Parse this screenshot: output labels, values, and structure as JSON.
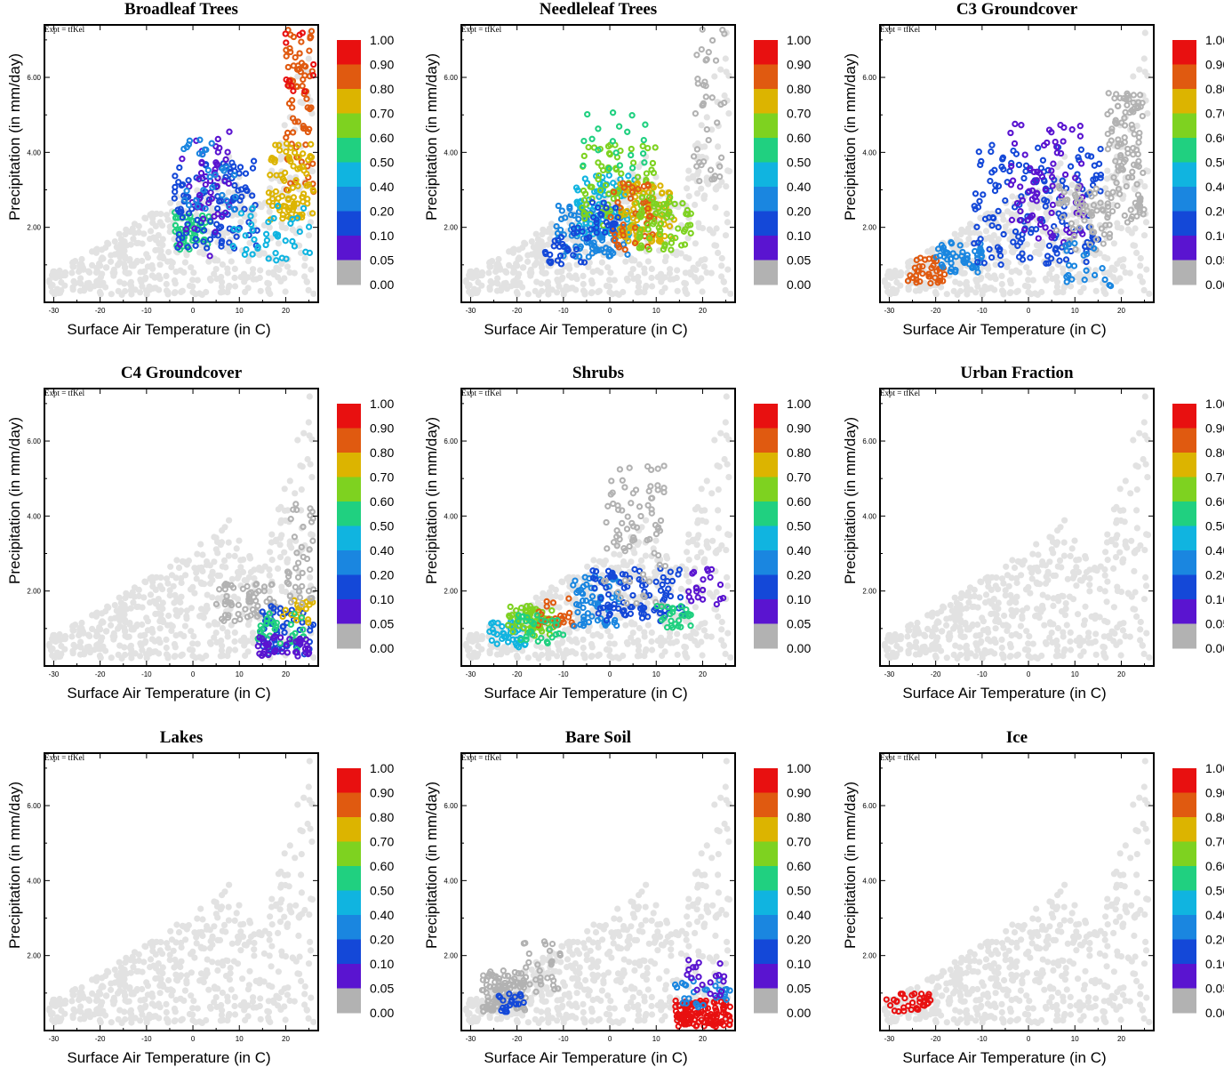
{
  "figure": {
    "expt_label": "Expt = tfKel",
    "xlabel": "Surface Air Temperature (in C)",
    "ylabel": "Precipitation (in mm/day)",
    "xlim": [
      -32,
      27
    ],
    "ylim": [
      0,
      7.4
    ],
    "x_ticks": [
      "-30",
      "-20",
      "-10",
      "0",
      "10",
      "20"
    ],
    "x_tick_values": [
      -30,
      -20,
      -10,
      0,
      10,
      20
    ],
    "y_ticks": [
      "2.00",
      "4.00",
      "6.00"
    ],
    "y_tick_values": [
      2,
      4,
      6
    ],
    "colorbar": {
      "labels": [
        "1.00",
        "0.90",
        "0.80",
        "0.70",
        "0.60",
        "0.50",
        "0.40",
        "0.20",
        "0.10",
        "0.05",
        "0.00"
      ],
      "colors": [
        "#e81010",
        "#e05a10",
        "#dcb400",
        "#7ed220",
        "#20d080",
        "#10b4e0",
        "#1a86e0",
        "#1448d8",
        "#5a14d0",
        "#b2b2b2"
      ]
    },
    "background_color": "#e2e2e2",
    "zero_color": "#b2b2b2"
  },
  "panels": [
    {
      "title": "Broadleaf Trees"
    },
    {
      "title": "Needleleaf Trees"
    },
    {
      "title": "C3 Groundcover"
    },
    {
      "title": "C4 Groundcover"
    },
    {
      "title": "Shrubs"
    },
    {
      "title": "Urban Fraction"
    },
    {
      "title": "Lakes"
    },
    {
      "title": "Bare Soil"
    },
    {
      "title": "Ice"
    }
  ],
  "chart_data": [
    {
      "type": "scatter",
      "title": "Broadleaf Trees",
      "xlabel": "Surface Air Temperature (in C)",
      "ylabel": "Precipitation (in mm/day)",
      "xlim": [
        -32,
        27
      ],
      "ylim": [
        0,
        7.4
      ],
      "clusters": [
        {
          "x": [
            20,
            26
          ],
          "y": [
            2.6,
            7.3
          ],
          "fraction": 0.9,
          "n": 70
        },
        {
          "x": [
            16,
            26
          ],
          "y": [
            2.2,
            4.3
          ],
          "fraction": 0.8,
          "n": 90
        },
        {
          "x": [
            -4,
            4
          ],
          "y": [
            1.4,
            2.4
          ],
          "fraction": 0.6,
          "n": 50
        },
        {
          "x": [
            -4,
            14
          ],
          "y": [
            1.4,
            3.8
          ],
          "fraction": 0.2,
          "n": 110
        },
        {
          "x": [
            -3,
            8
          ],
          "y": [
            1.2,
            4.6
          ],
          "fraction": 0.1,
          "n": 50
        },
        {
          "x": [
            8,
            26
          ],
          "y": [
            1.0,
            2.6
          ],
          "fraction": 0.5,
          "n": 40
        },
        {
          "x": [
            -2,
            10
          ],
          "y": [
            2.4,
            4.4
          ],
          "fraction": 0.4,
          "n": 30
        },
        {
          "x": [
            18,
            26
          ],
          "y": [
            5.4,
            7.3
          ],
          "fraction": 1.0,
          "n": 12
        }
      ]
    },
    {
      "type": "scatter",
      "title": "Needleleaf Trees",
      "xlabel": "Surface Air Temperature (in C)",
      "ylabel": "Precipitation (in mm/day)",
      "xlim": [
        -32,
        27
      ],
      "ylim": [
        0,
        7.4
      ],
      "clusters": [
        {
          "x": [
            -12,
            4
          ],
          "y": [
            1.2,
            2.6
          ],
          "fraction": 0.4,
          "n": 110
        },
        {
          "x": [
            -8,
            6
          ],
          "y": [
            1.8,
            3.4
          ],
          "fraction": 0.5,
          "n": 70
        },
        {
          "x": [
            -6,
            10
          ],
          "y": [
            2.0,
            4.2
          ],
          "fraction": 0.7,
          "n": 80
        },
        {
          "x": [
            2,
            14
          ],
          "y": [
            1.6,
            3.2
          ],
          "fraction": 0.8,
          "n": 80
        },
        {
          "x": [
            0,
            10
          ],
          "y": [
            1.4,
            3.2
          ],
          "fraction": 0.9,
          "n": 40
        },
        {
          "x": [
            -14,
            -4
          ],
          "y": [
            1.0,
            2.0
          ],
          "fraction": 0.2,
          "n": 30
        },
        {
          "x": [
            6,
            18
          ],
          "y": [
            1.4,
            2.8
          ],
          "fraction": 0.7,
          "n": 60
        },
        {
          "x": [
            18,
            25
          ],
          "y": [
            2.8,
            7.3
          ],
          "fraction": 0.05,
          "n": 40
        },
        {
          "x": [
            -6,
            8
          ],
          "y": [
            3.4,
            5.2
          ],
          "fraction": 0.6,
          "n": 20
        },
        {
          "x": [
            -4,
            2
          ],
          "y": [
            1.8,
            3.0
          ],
          "fraction": 0.2,
          "n": 20
        }
      ]
    },
    {
      "type": "scatter",
      "title": "C3 Groundcover",
      "xlabel": "Surface Air Temperature (in C)",
      "ylabel": "Precipitation (in mm/day)",
      "xlim": [
        -32,
        27
      ],
      "ylim": [
        0,
        7.4
      ],
      "clusters": [
        {
          "x": [
            -26,
            -18
          ],
          "y": [
            0.5,
            1.3
          ],
          "fraction": 0.9,
          "n": 40
        },
        {
          "x": [
            -20,
            -10
          ],
          "y": [
            0.8,
            1.6
          ],
          "fraction": 0.4,
          "n": 50
        },
        {
          "x": [
            -12,
            16
          ],
          "y": [
            1.0,
            4.2
          ],
          "fraction": 0.2,
          "n": 160
        },
        {
          "x": [
            -4,
            12
          ],
          "y": [
            1.6,
            4.8
          ],
          "fraction": 0.1,
          "n": 80
        },
        {
          "x": [
            6,
            18
          ],
          "y": [
            1.4,
            3.2
          ],
          "fraction": 0.05,
          "n": 60
        },
        {
          "x": [
            17,
            25
          ],
          "y": [
            2.0,
            5.6
          ],
          "fraction": 0.05,
          "n": 110
        },
        {
          "x": [
            8,
            18
          ],
          "y": [
            0.4,
            1.6
          ],
          "fraction": 0.4,
          "n": 20
        }
      ]
    },
    {
      "type": "scatter",
      "title": "C4 Groundcover",
      "xlabel": "Surface Air Temperature (in C)",
      "ylabel": "Precipitation (in mm/day)",
      "xlim": [
        -32,
        27
      ],
      "ylim": [
        0,
        7.4
      ],
      "clusters": [
        {
          "x": [
            5,
            18
          ],
          "y": [
            1.2,
            2.2
          ],
          "fraction": 0.05,
          "n": 60
        },
        {
          "x": [
            14,
            26
          ],
          "y": [
            0.3,
            1.6
          ],
          "fraction": 0.2,
          "n": 60
        },
        {
          "x": [
            18,
            26
          ],
          "y": [
            1.0,
            1.8
          ],
          "fraction": 0.8,
          "n": 20
        },
        {
          "x": [
            14,
            24
          ],
          "y": [
            0.4,
            1.4
          ],
          "fraction": 0.6,
          "n": 30
        },
        {
          "x": [
            20,
            26
          ],
          "y": [
            1.6,
            4.4
          ],
          "fraction": 0.05,
          "n": 40
        },
        {
          "x": [
            14,
            26
          ],
          "y": [
            0.2,
            0.8
          ],
          "fraction": 0.1,
          "n": 40
        }
      ]
    },
    {
      "type": "scatter",
      "title": "Shrubs",
      "xlabel": "Surface Air Temperature (in C)",
      "ylabel": "Precipitation (in mm/day)",
      "xlim": [
        -32,
        27
      ],
      "ylim": [
        0,
        7.4
      ],
      "clusters": [
        {
          "x": [
            -26,
            -18
          ],
          "y": [
            0.5,
            1.2
          ],
          "fraction": 0.5,
          "n": 40
        },
        {
          "x": [
            -22,
            -12
          ],
          "y": [
            0.8,
            1.6
          ],
          "fraction": 0.7,
          "n": 60
        },
        {
          "x": [
            -16,
            -8
          ],
          "y": [
            1.0,
            1.8
          ],
          "fraction": 0.9,
          "n": 25
        },
        {
          "x": [
            -8,
            2
          ],
          "y": [
            1.0,
            2.4
          ],
          "fraction": 0.4,
          "n": 60
        },
        {
          "x": [
            -4,
            16
          ],
          "y": [
            1.2,
            2.6
          ],
          "fraction": 0.2,
          "n": 90
        },
        {
          "x": [
            -2,
            12
          ],
          "y": [
            1.6,
            5.4
          ],
          "fraction": 0.05,
          "n": 80
        },
        {
          "x": [
            10,
            18
          ],
          "y": [
            1.0,
            1.6
          ],
          "fraction": 0.6,
          "n": 25
        },
        {
          "x": [
            -20,
            -10
          ],
          "y": [
            0.6,
            1.4
          ],
          "fraction": 0.6,
          "n": 30
        },
        {
          "x": [
            16,
            25
          ],
          "y": [
            1.6,
            2.6
          ],
          "fraction": 0.1,
          "n": 20
        }
      ]
    },
    {
      "type": "scatter",
      "title": "Urban Fraction",
      "xlabel": "Surface Air Temperature (in C)",
      "ylabel": "Precipitation (in mm/day)",
      "xlim": [
        -32,
        27
      ],
      "ylim": [
        0,
        7.4
      ],
      "clusters": []
    },
    {
      "type": "scatter",
      "title": "Lakes",
      "xlabel": "Surface Air Temperature (in C)",
      "ylabel": "Precipitation (in mm/day)",
      "xlim": [
        -32,
        27
      ],
      "ylim": [
        0,
        7.4
      ],
      "clusters": []
    },
    {
      "type": "scatter",
      "title": "Bare Soil",
      "xlabel": "Surface Air Temperature (in C)",
      "ylabel": "Precipitation (in mm/day)",
      "xlim": [
        -32,
        27
      ],
      "ylim": [
        0,
        7.4
      ],
      "clusters": [
        {
          "x": [
            -28,
            -18
          ],
          "y": [
            0.5,
            1.6
          ],
          "fraction": 0.05,
          "n": 110
        },
        {
          "x": [
            -20,
            -10
          ],
          "y": [
            1.0,
            2.4
          ],
          "fraction": 0.05,
          "n": 30
        },
        {
          "x": [
            14,
            26
          ],
          "y": [
            0.1,
            0.8
          ],
          "fraction": 1.0,
          "n": 120
        },
        {
          "x": [
            14,
            26
          ],
          "y": [
            0.6,
            1.4
          ],
          "fraction": 0.4,
          "n": 30
        },
        {
          "x": [
            16,
            26
          ],
          "y": [
            0.9,
            1.9
          ],
          "fraction": 0.1,
          "n": 20
        },
        {
          "x": [
            -24,
            -18
          ],
          "y": [
            0.5,
            1.0
          ],
          "fraction": 0.2,
          "n": 20
        }
      ]
    },
    {
      "type": "scatter",
      "title": "Ice",
      "xlabel": "Surface Air Temperature (in C)",
      "ylabel": "Precipitation (in mm/day)",
      "xlim": [
        -32,
        27
      ],
      "ylim": [
        0,
        7.4
      ],
      "clusters": [
        {
          "x": [
            -31,
            -21
          ],
          "y": [
            0.5,
            1.0
          ],
          "fraction": 1.0,
          "n": 35
        }
      ]
    }
  ]
}
